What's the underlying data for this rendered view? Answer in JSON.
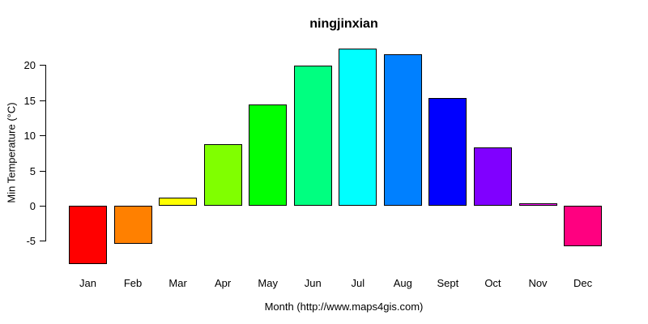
{
  "title": "ningjinxian",
  "chart_data": {
    "type": "bar",
    "title": "ningjinxian",
    "xlabel": "Month (http://www.maps4gis.com)",
    "ylabel": "Min Temperature (°C)",
    "categories": [
      "Jan",
      "Feb",
      "Mar",
      "Apr",
      "May",
      "Jun",
      "Jul",
      "Aug",
      "Sept",
      "Oct",
      "Nov",
      "Dec"
    ],
    "values": [
      -8.3,
      -5.4,
      1.1,
      8.7,
      14.4,
      19.9,
      22.4,
      21.5,
      15.3,
      8.3,
      0.4,
      -5.8
    ],
    "bar_colors": [
      "#FF0000",
      "#FF8000",
      "#FFFF00",
      "#80FF00",
      "#00FF00",
      "#00FF80",
      "#00FFFF",
      "#0080FF",
      "#0000FF",
      "#8000FF",
      "#FF00FF",
      "#FF0080"
    ],
    "bar_border_color": "#000000",
    "yticks": [
      -5,
      0,
      5,
      10,
      15,
      20
    ],
    "ylim": [
      -9.5,
      22.5
    ],
    "grid": false,
    "legend": null,
    "background_color": "#FFFFFF"
  }
}
